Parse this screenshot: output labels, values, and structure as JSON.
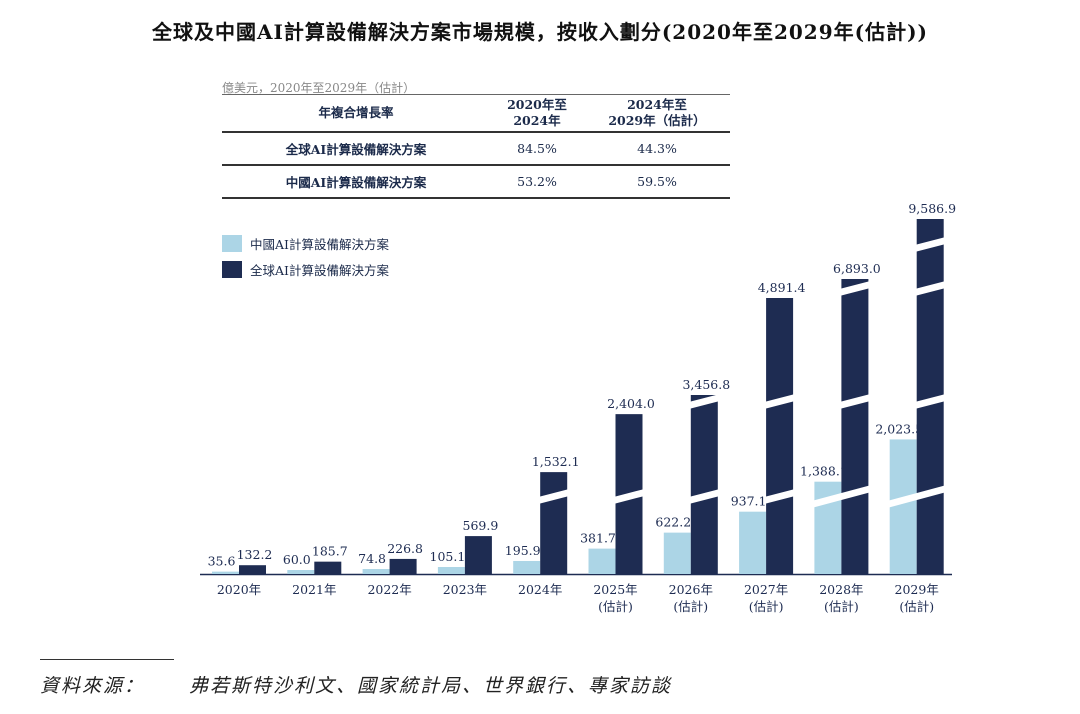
{
  "title": "全球及中國AI計算設備解決方案市場規模，按收入劃分(2020年至2029年(估計))",
  "cagr_table": {
    "unit": "億美元，2020年至2029年（估計）",
    "header": [
      "年複合增長率",
      "2020年至\n2024年",
      "2024年至\n2029年（估計）"
    ],
    "rows": [
      {
        "label": "全球AI計算設備解決方案",
        "values": [
          "84.5%",
          "44.3%"
        ]
      },
      {
        "label": "中國AI計算設備解決方案",
        "values": [
          "53.2%",
          "59.5%"
        ]
      }
    ]
  },
  "chart_data": {
    "type": "bar",
    "categories": [
      "2020年",
      "2021年",
      "2022年",
      "2023年",
      "2024年",
      "2025年\n(估計)",
      "2026年\n(估計)",
      "2027年\n(估計)",
      "2028年\n(估計)",
      "2029年\n(估計)"
    ],
    "series": [
      {
        "name": "中國AI計算設備解決方案",
        "color": "#acd5e6",
        "values": [
          35.6,
          60.0,
          74.8,
          105.1,
          195.9,
          381.7,
          622.2,
          937.1,
          1388.1,
          2023.5
        ],
        "labels": [
          "35.6",
          "60.0",
          "74.8",
          "105.1",
          "195.9",
          "381.7",
          "622.2",
          "937.1",
          "1,388.1",
          "2,023.5"
        ]
      },
      {
        "name": "全球AI計算設備解決方案",
        "color": "#1e2c52",
        "values": [
          132.2,
          185.7,
          226.8,
          569.9,
          1532.1,
          2404.0,
          3456.8,
          4891.4,
          6893.0,
          9586.9
        ],
        "labels": [
          "132.2",
          "185.7",
          "226.8",
          "569.9",
          "1,532.1",
          "2,404.0",
          "3,456.8",
          "4,891.4",
          "6,893.0",
          "9,586.9"
        ]
      }
    ],
    "broken_axis": true,
    "legend": "top-left",
    "grid": false
  },
  "source": {
    "label": "資料來源：",
    "text": "弗若斯特沙利文、國家統計局、世界銀行、專家訪談"
  }
}
